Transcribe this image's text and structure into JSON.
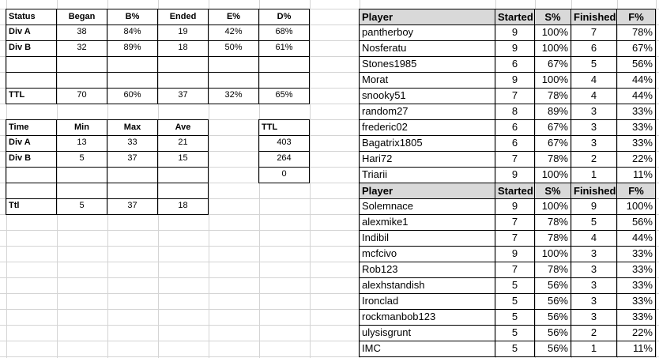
{
  "status_table": {
    "header": [
      "Status",
      "Began",
      "B%",
      "Ended",
      "E%",
      "D%"
    ],
    "rows": [
      [
        "Div A",
        "38",
        "84%",
        "19",
        "42%",
        "68%"
      ],
      [
        "Div B",
        "32",
        "89%",
        "18",
        "50%",
        "61%"
      ],
      [
        "TTL",
        "70",
        "60%",
        "37",
        "32%",
        "65%"
      ]
    ]
  },
  "time_table": {
    "header": [
      "Time",
      "Min",
      "Max",
      "Ave"
    ],
    "rows": [
      [
        "Div A",
        "13",
        "33",
        "21"
      ],
      [
        "Div B",
        "5",
        "37",
        "15"
      ],
      [
        "Ttl",
        "5",
        "37",
        "18"
      ]
    ]
  },
  "ttl_table": {
    "header": "TTL",
    "rows": [
      "403",
      "264",
      "0"
    ]
  },
  "player_tables": [
    {
      "header": [
        "Player",
        "Started",
        "S%",
        "Finished",
        "F%"
      ],
      "rows": [
        [
          "pantherboy",
          "9",
          "100%",
          "7",
          "78%"
        ],
        [
          "Nosferatu",
          "9",
          "100%",
          "6",
          "67%"
        ],
        [
          "Stones1985",
          "6",
          "67%",
          "5",
          "56%"
        ],
        [
          "Morat",
          "9",
          "100%",
          "4",
          "44%"
        ],
        [
          "snooky51",
          "7",
          "78%",
          "4",
          "44%"
        ],
        [
          "random27",
          "8",
          "89%",
          "3",
          "33%"
        ],
        [
          "frederic02",
          "6",
          "67%",
          "3",
          "33%"
        ],
        [
          "Bagatrix1805",
          "6",
          "67%",
          "3",
          "33%"
        ],
        [
          "Hari72",
          "7",
          "78%",
          "2",
          "22%"
        ],
        [
          "Triarii",
          "9",
          "100%",
          "1",
          "11%"
        ]
      ]
    },
    {
      "header": [
        "Player",
        "Started",
        "S%",
        "Finished",
        "F%"
      ],
      "rows": [
        [
          "Solemnace",
          "9",
          "100%",
          "9",
          "100%"
        ],
        [
          "alexmike1",
          "7",
          "78%",
          "5",
          "56%"
        ],
        [
          "Indibil",
          "7",
          "78%",
          "4",
          "44%"
        ],
        [
          "mcfcivo",
          "9",
          "100%",
          "3",
          "33%"
        ],
        [
          "Rob123",
          "7",
          "78%",
          "3",
          "33%"
        ],
        [
          "alexhstandish",
          "5",
          "56%",
          "3",
          "33%"
        ],
        [
          "Ironclad",
          "5",
          "56%",
          "3",
          "33%"
        ],
        [
          "rockmanbob123",
          "5",
          "56%",
          "3",
          "33%"
        ],
        [
          "ulysisgrunt",
          "5",
          "56%",
          "2",
          "22%"
        ],
        [
          "IMC",
          "5",
          "56%",
          "1",
          "11%"
        ]
      ]
    }
  ]
}
